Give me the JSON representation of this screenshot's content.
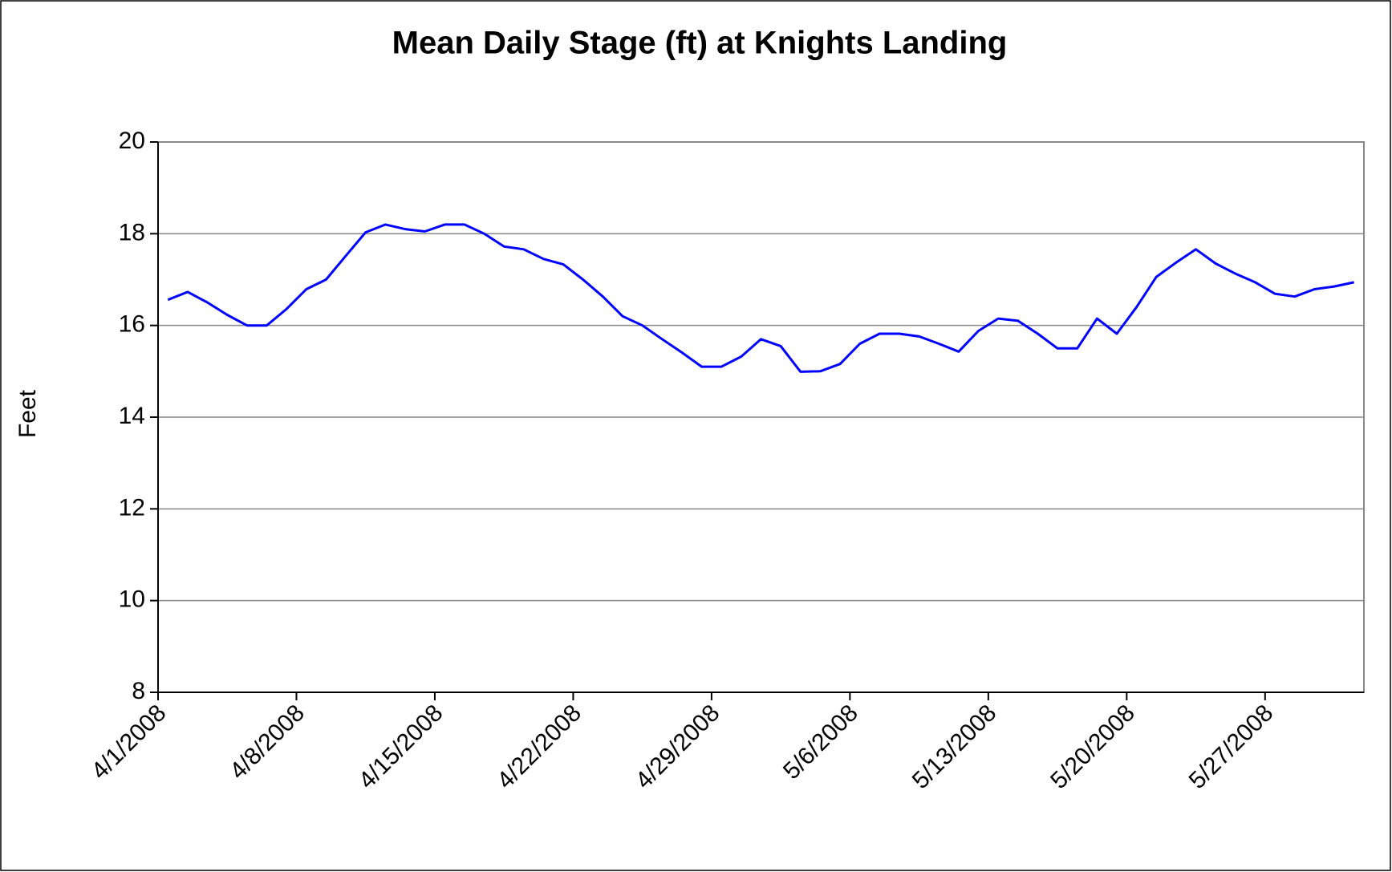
{
  "chart_data": {
    "type": "line",
    "title": "Mean Daily Stage (ft) at Knights Landing",
    "y_label": "Feet",
    "categories": [
      "4/1/2008",
      null,
      null,
      null,
      null,
      null,
      null,
      "4/8/2008",
      null,
      null,
      null,
      null,
      null,
      null,
      "4/15/2008",
      null,
      null,
      null,
      null,
      null,
      null,
      "4/22/2008",
      null,
      null,
      null,
      null,
      null,
      null,
      "4/29/2008",
      null,
      null,
      null,
      null,
      null,
      null,
      "5/6/2008",
      null,
      null,
      null,
      null,
      null,
      null,
      "5/13/2008",
      null,
      null,
      null,
      null,
      null,
      null,
      "5/20/2008",
      null,
      null,
      null,
      null,
      null,
      null,
      "5/27/2008",
      null,
      null,
      null,
      null
    ],
    "series": [
      {
        "name": "Stage",
        "color": "#0000ff",
        "values": [
          16.56,
          16.73,
          16.5,
          16.23,
          16.0,
          16.0,
          16.36,
          16.79,
          17.0,
          17.52,
          18.03,
          18.2,
          18.1,
          18.05,
          18.2,
          18.2,
          18.0,
          17.72,
          17.66,
          17.45,
          17.33,
          17.0,
          16.63,
          16.2,
          16.0,
          15.7,
          15.41,
          15.1,
          15.1,
          15.32,
          15.7,
          15.55,
          14.99,
          15.0,
          15.16,
          15.6,
          15.82,
          15.82,
          15.76,
          15.6,
          15.43,
          15.88,
          16.15,
          16.1,
          15.82,
          15.5,
          15.5,
          16.15,
          15.82,
          16.4,
          17.06,
          17.37,
          17.66,
          17.35,
          17.13,
          16.94,
          16.69,
          16.63,
          16.79,
          16.85,
          16.94
        ]
      }
    ],
    "ylim": [
      8,
      20
    ],
    "yticks": [
      8,
      10,
      12,
      14,
      16,
      18,
      20
    ],
    "grid": true
  }
}
